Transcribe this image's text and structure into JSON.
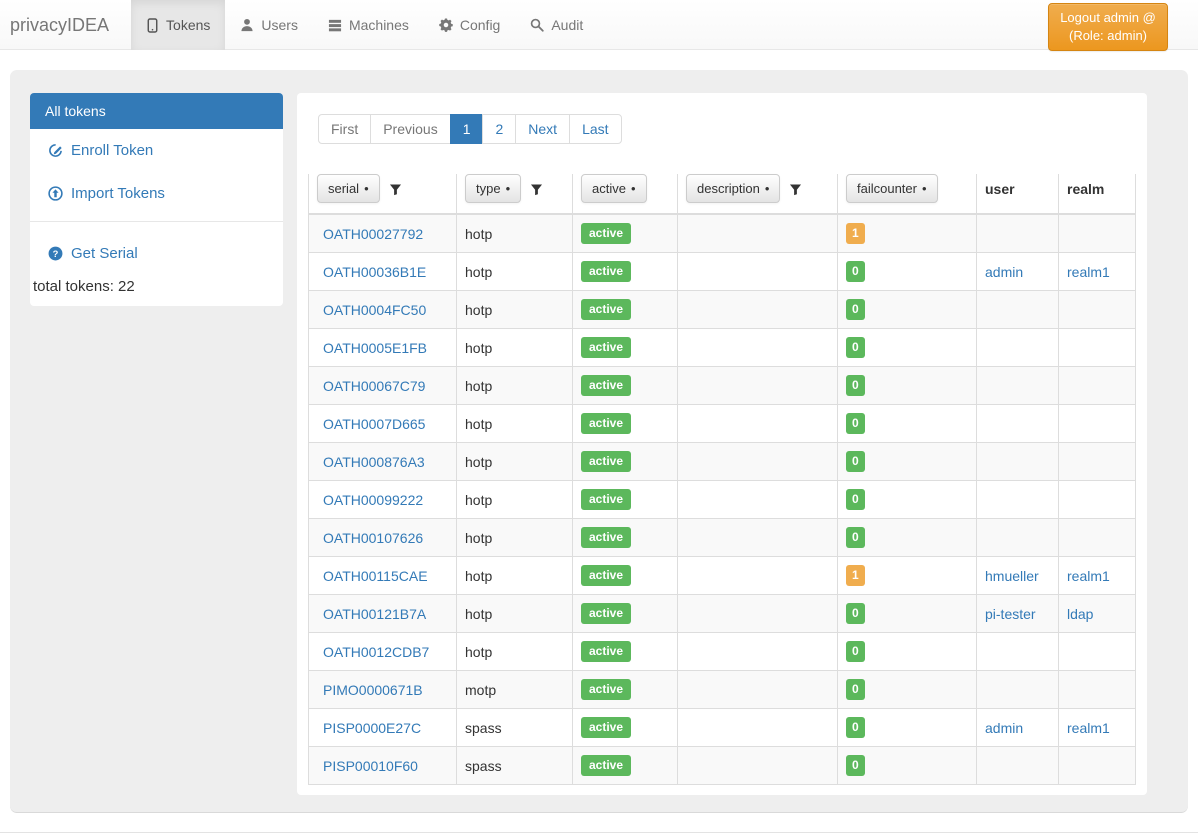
{
  "colors": {
    "primary": "#337ab7",
    "success": "#5cb85c",
    "warning": "#f0ad4e",
    "nav-text": "#777777",
    "nav-active-bg": "#e7e7e7",
    "border": "#dddddd"
  },
  "brand": "privacyIDEA",
  "nav": {
    "items": [
      {
        "label": "Tokens",
        "icon": "phone-icon",
        "active": true
      },
      {
        "label": "Users",
        "icon": "user-icon",
        "active": false
      },
      {
        "label": "Machines",
        "icon": "tasks-icon",
        "active": false
      },
      {
        "label": "Config",
        "icon": "gear-icon",
        "active": false
      },
      {
        "label": "Audit",
        "icon": "search-icon",
        "active": false
      }
    ]
  },
  "logout": {
    "line1": "Logout admin @",
    "line2": "(Role: admin)"
  },
  "sidebar": {
    "active_item": "All tokens",
    "links": [
      {
        "label": "Enroll Token",
        "icon": "edit-icon"
      },
      {
        "label": "Import Tokens",
        "icon": "import-icon"
      }
    ],
    "footer_link": {
      "label": "Get Serial",
      "icon": "question-icon"
    },
    "total_label": "total tokens: 22"
  },
  "pagination": {
    "items": [
      {
        "label": "First",
        "state": "disabled"
      },
      {
        "label": "Previous",
        "state": "disabled"
      },
      {
        "label": "1",
        "state": "active"
      },
      {
        "label": "2",
        "state": "link"
      },
      {
        "label": "Next",
        "state": "link"
      },
      {
        "label": "Last",
        "state": "link"
      }
    ]
  },
  "table": {
    "sort_dot": "•",
    "headers": [
      {
        "label": "serial",
        "style": "button",
        "filter": true
      },
      {
        "label": "type",
        "style": "button",
        "filter": true
      },
      {
        "label": "active",
        "style": "button",
        "filter": false
      },
      {
        "label": "description",
        "style": "button",
        "filter": true
      },
      {
        "label": "failcounter",
        "style": "button",
        "filter": false
      },
      {
        "label": "user",
        "style": "text"
      },
      {
        "label": "realm",
        "style": "text"
      }
    ],
    "rows": [
      {
        "serial": "OATH00027792",
        "type": "hotp",
        "active": "active",
        "description": "",
        "failcounter": "1",
        "user": "",
        "realm": ""
      },
      {
        "serial": "OATH00036B1E",
        "type": "hotp",
        "active": "active",
        "description": "",
        "failcounter": "0",
        "user": "admin",
        "realm": "realm1"
      },
      {
        "serial": "OATH0004FC50",
        "type": "hotp",
        "active": "active",
        "description": "",
        "failcounter": "0",
        "user": "",
        "realm": ""
      },
      {
        "serial": "OATH0005E1FB",
        "type": "hotp",
        "active": "active",
        "description": "",
        "failcounter": "0",
        "user": "",
        "realm": ""
      },
      {
        "serial": "OATH00067C79",
        "type": "hotp",
        "active": "active",
        "description": "",
        "failcounter": "0",
        "user": "",
        "realm": ""
      },
      {
        "serial": "OATH0007D665",
        "type": "hotp",
        "active": "active",
        "description": "",
        "failcounter": "0",
        "user": "",
        "realm": ""
      },
      {
        "serial": "OATH000876A3",
        "type": "hotp",
        "active": "active",
        "description": "",
        "failcounter": "0",
        "user": "",
        "realm": ""
      },
      {
        "serial": "OATH00099222",
        "type": "hotp",
        "active": "active",
        "description": "",
        "failcounter": "0",
        "user": "",
        "realm": ""
      },
      {
        "serial": "OATH00107626",
        "type": "hotp",
        "active": "active",
        "description": "",
        "failcounter": "0",
        "user": "",
        "realm": ""
      },
      {
        "serial": "OATH00115CAE",
        "type": "hotp",
        "active": "active",
        "description": "",
        "failcounter": "1",
        "user": "hmueller",
        "realm": "realm1"
      },
      {
        "serial": "OATH00121B7A",
        "type": "hotp",
        "active": "active",
        "description": "",
        "failcounter": "0",
        "user": "pi-tester",
        "realm": "ldap"
      },
      {
        "serial": "OATH0012CDB7",
        "type": "hotp",
        "active": "active",
        "description": "",
        "failcounter": "0",
        "user": "",
        "realm": ""
      },
      {
        "serial": "PIMO0000671B",
        "type": "motp",
        "active": "active",
        "description": "",
        "failcounter": "0",
        "user": "",
        "realm": ""
      },
      {
        "serial": "PISP0000E27C",
        "type": "spass",
        "active": "active",
        "description": "",
        "failcounter": "0",
        "user": "admin",
        "realm": "realm1"
      },
      {
        "serial": "PISP00010F60",
        "type": "spass",
        "active": "active",
        "description": "",
        "failcounter": "0",
        "user": "",
        "realm": ""
      }
    ]
  }
}
